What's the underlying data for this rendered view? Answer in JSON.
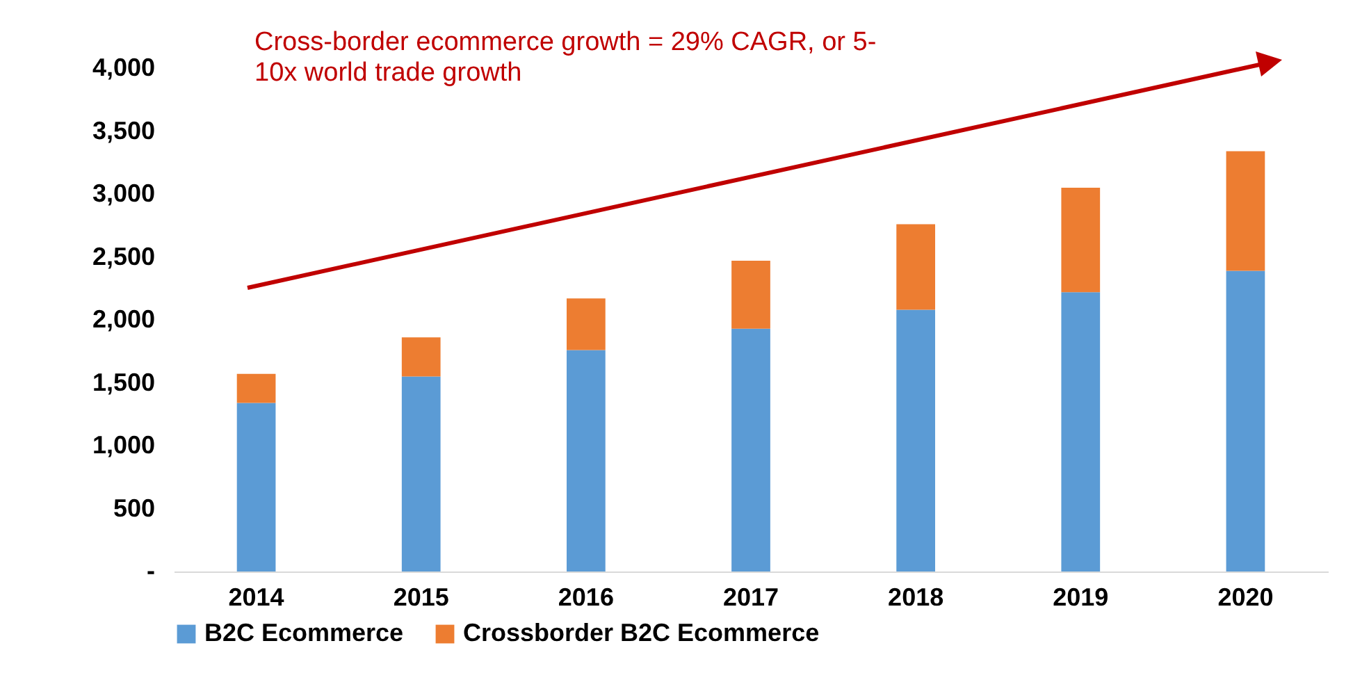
{
  "chart_data": {
    "type": "bar",
    "stacked": true,
    "categories": [
      "2014",
      "2015",
      "2016",
      "2017",
      "2018",
      "2019",
      "2020"
    ],
    "series": [
      {
        "name": "B2C Ecommerce",
        "color": "#5b9bd5",
        "values": [
          1340,
          1550,
          1760,
          1930,
          2080,
          2220,
          2390
        ]
      },
      {
        "name": "Crossborder B2C Ecommerce",
        "color": "#ed7d31",
        "values": [
          230,
          310,
          410,
          540,
          680,
          830,
          950
        ]
      }
    ],
    "ylim": [
      0,
      4000
    ],
    "yticks": [
      {
        "value": 0,
        "label": "-"
      },
      {
        "value": 500,
        "label": "500"
      },
      {
        "value": 1000,
        "label": "1,000"
      },
      {
        "value": 1500,
        "label": "1,500"
      },
      {
        "value": 2000,
        "label": "2,000"
      },
      {
        "value": 2500,
        "label": "2,500"
      },
      {
        "value": 3000,
        "label": "3,000"
      },
      {
        "value": 3500,
        "label": "3,500"
      },
      {
        "value": 4000,
        "label": "4,000"
      }
    ],
    "grid": false,
    "legend": "bottom",
    "annotations": [
      "Cross-border ecommerce growth = 29% CAGR, or 5-10x world trade growth"
    ]
  }
}
